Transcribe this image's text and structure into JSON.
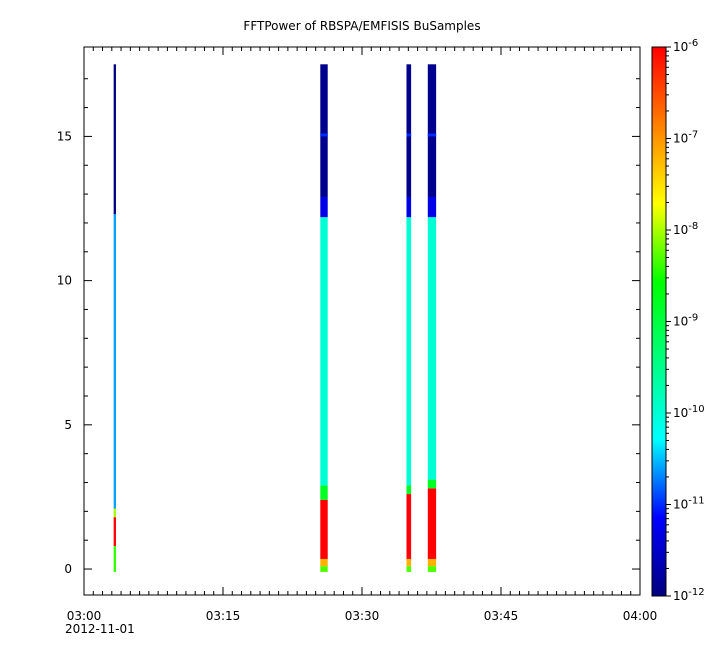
{
  "chart_data": {
    "type": "heatmap",
    "title": "FFTPower of RBSPA/EMFISIS  BuSamples",
    "xlabel": "",
    "ylabel": "",
    "x_axis": {
      "type": "time",
      "range": [
        "03:00",
        "04:00"
      ],
      "ticks": [
        "03:00",
        "03:15",
        "03:30",
        "03:45",
        "04:00"
      ],
      "date_label": "2012-11-01"
    },
    "y_axis": {
      "range": [
        -0.9,
        18.1
      ],
      "ticks": [
        0,
        5,
        10,
        15
      ]
    },
    "colorbar": {
      "scale": "log",
      "range": [
        1e-12,
        1e-06
      ],
      "ticks": [
        {
          "base": "10",
          "exp": "-6",
          "value": -6
        },
        {
          "base": "10",
          "exp": "-7",
          "value": -7
        },
        {
          "base": "10",
          "exp": "-8",
          "value": -8
        },
        {
          "base": "10",
          "exp": "-9",
          "value": -9
        },
        {
          "base": "10",
          "exp": "-10",
          "value": -10
        },
        {
          "base": "10",
          "exp": "-11",
          "value": -11
        },
        {
          "base": "10",
          "exp": "-12",
          "value": -12
        }
      ],
      "colors": [
        "#00007f",
        "#0000ff",
        "#00ffff",
        "#00ff80",
        "#00ff00",
        "#ffff00",
        "#ff8000",
        "#ff0000"
      ]
    },
    "grid": false,
    "series": [
      {
        "x_start_min": 3.2,
        "x_end_min": 3.45,
        "bands": [
          {
            "y0": -0.1,
            "y1": 0.8,
            "log10_power": -8.4
          },
          {
            "y0": 0.8,
            "y1": 1.8,
            "log10_power": -6.0
          },
          {
            "y0": 1.8,
            "y1": 2.1,
            "log10_power": -8.0
          },
          {
            "y0": 2.1,
            "y1": 12.3,
            "log10_power": -10.6
          },
          {
            "y0": 12.3,
            "y1": 17.5,
            "log10_power": -12.0
          }
        ]
      },
      {
        "x_start_min": 25.5,
        "x_end_min": 26.3,
        "bands": [
          {
            "y0": -0.1,
            "y1": 0.1,
            "log10_power": -8.3
          },
          {
            "y0": 0.1,
            "y1": 0.35,
            "log10_power": -7.2
          },
          {
            "y0": 0.35,
            "y1": 2.4,
            "log10_power": -6.0
          },
          {
            "y0": 2.4,
            "y1": 2.9,
            "log10_power": -8.8
          },
          {
            "y0": 2.9,
            "y1": 12.2,
            "log10_power": -10.0
          },
          {
            "y0": 12.2,
            "y1": 12.9,
            "log10_power": -11.3
          },
          {
            "y0": 12.9,
            "y1": 17.5,
            "log10_power": -11.9
          },
          {
            "y0": 15.0,
            "y1": 15.1,
            "log10_power": -11.0
          }
        ]
      },
      {
        "x_start_min": 34.8,
        "x_end_min": 35.3,
        "bands": [
          {
            "y0": -0.1,
            "y1": 0.1,
            "log10_power": -8.3
          },
          {
            "y0": 0.1,
            "y1": 0.35,
            "log10_power": -7.2
          },
          {
            "y0": 0.35,
            "y1": 2.6,
            "log10_power": -6.0
          },
          {
            "y0": 2.6,
            "y1": 2.9,
            "log10_power": -8.8
          },
          {
            "y0": 2.9,
            "y1": 12.2,
            "log10_power": -10.0
          },
          {
            "y0": 12.2,
            "y1": 12.9,
            "log10_power": -11.3
          },
          {
            "y0": 12.9,
            "y1": 17.5,
            "log10_power": -11.9
          },
          {
            "y0": 15.0,
            "y1": 15.1,
            "log10_power": -11.0
          }
        ]
      },
      {
        "x_start_min": 37.1,
        "x_end_min": 38.0,
        "bands": [
          {
            "y0": -0.1,
            "y1": 0.1,
            "log10_power": -8.3
          },
          {
            "y0": 0.1,
            "y1": 0.35,
            "log10_power": -7.2
          },
          {
            "y0": 0.35,
            "y1": 2.8,
            "log10_power": -6.0
          },
          {
            "y0": 2.8,
            "y1": 3.1,
            "log10_power": -8.8
          },
          {
            "y0": 3.1,
            "y1": 12.2,
            "log10_power": -10.0
          },
          {
            "y0": 12.2,
            "y1": 12.9,
            "log10_power": -11.3
          },
          {
            "y0": 12.9,
            "y1": 17.5,
            "log10_power": -11.9
          },
          {
            "y0": 15.0,
            "y1": 15.1,
            "log10_power": -11.0
          }
        ]
      }
    ]
  }
}
